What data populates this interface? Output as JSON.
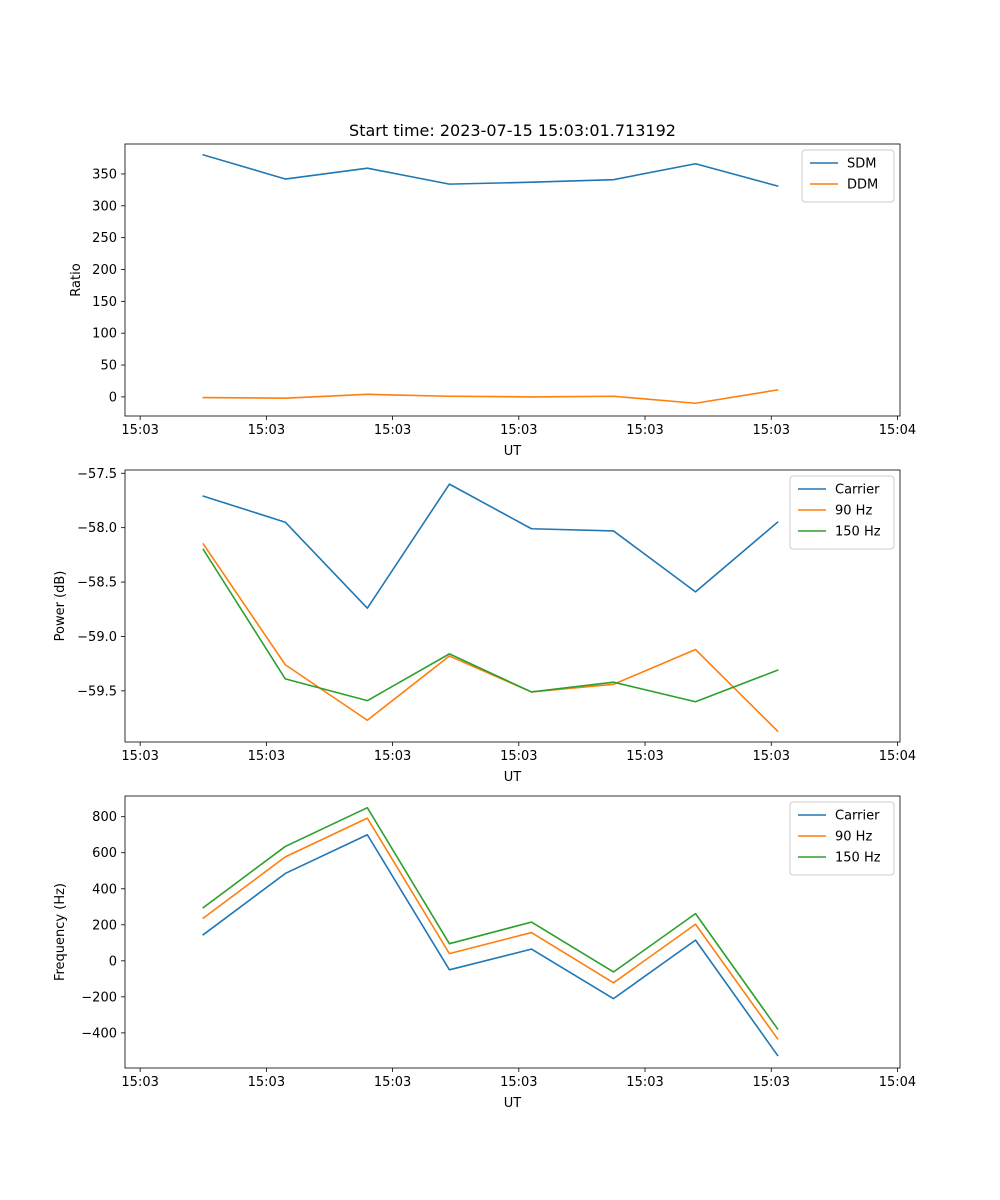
{
  "figure_title": "Start time: 2023-07-15 15:03:01.713192",
  "colors": {
    "blue": "#1f77b4",
    "orange": "#ff7f0e",
    "green": "#2ca02c"
  },
  "chart_data": [
    {
      "type": "line",
      "title": "Start time: 2023-07-15 15:03:01.713192",
      "xlabel": "UT",
      "ylabel": "Ratio",
      "x_tick_labels": [
        "15:03",
        "15:03",
        "15:03",
        "15:03",
        "15:03",
        "15:03",
        "15:04"
      ],
      "x_tick_positions": [
        0,
        1,
        2,
        3,
        4,
        5,
        6
      ],
      "xlim": [
        -0.12,
        6.02
      ],
      "x": [
        0.5,
        1.15,
        1.8,
        2.45,
        3.1,
        3.75,
        4.4,
        5.05
      ],
      "ylim": [
        -30,
        397
      ],
      "y_ticks": [
        0,
        50,
        100,
        150,
        200,
        250,
        300,
        350
      ],
      "y_tick_labels": [
        "0",
        "50",
        "100",
        "150",
        "200",
        "250",
        "300",
        "350"
      ],
      "legend_position": "top-right",
      "series": [
        {
          "name": "SDM",
          "color": "#1f77b4",
          "values": [
            380,
            342,
            359,
            334,
            337,
            341,
            366,
            331
          ]
        },
        {
          "name": "DDM",
          "color": "#ff7f0e",
          "values": [
            -1,
            -2,
            4,
            1,
            0,
            1,
            -10,
            11
          ]
        }
      ]
    },
    {
      "type": "line",
      "title": "",
      "xlabel": "UT",
      "ylabel": "Power (dB)",
      "x_tick_labels": [
        "15:03",
        "15:03",
        "15:03",
        "15:03",
        "15:03",
        "15:03",
        "15:04"
      ],
      "x_tick_positions": [
        0,
        1,
        2,
        3,
        4,
        5,
        6
      ],
      "xlim": [
        -0.12,
        6.02
      ],
      "x": [
        0.5,
        1.15,
        1.8,
        2.45,
        3.1,
        3.75,
        4.4,
        5.05
      ],
      "ylim": [
        -59.97,
        -57.47
      ],
      "y_ticks": [
        -59.5,
        -59.0,
        -58.5,
        -58.0,
        -57.5
      ],
      "y_tick_labels": [
        "−59.5",
        "−59.0",
        "−58.5",
        "−58.0",
        "−57.5"
      ],
      "legend_position": "top-right",
      "series": [
        {
          "name": "Carrier",
          "color": "#1f77b4",
          "values": [
            -57.71,
            -57.95,
            -58.74,
            -57.6,
            -58.01,
            -58.03,
            -58.59,
            -57.95
          ]
        },
        {
          "name": "90 Hz",
          "color": "#ff7f0e",
          "values": [
            -58.15,
            -59.26,
            -59.77,
            -59.18,
            -59.51,
            -59.44,
            -59.12,
            -59.87
          ]
        },
        {
          "name": "150 Hz",
          "color": "#2ca02c",
          "values": [
            -58.2,
            -59.39,
            -59.59,
            -59.16,
            -59.51,
            -59.42,
            -59.6,
            -59.31
          ]
        }
      ]
    },
    {
      "type": "line",
      "title": "",
      "xlabel": "UT",
      "ylabel": "Frequency (Hz)",
      "x_tick_labels": [
        "15:03",
        "15:03",
        "15:03",
        "15:03",
        "15:03",
        "15:03",
        "15:04"
      ],
      "x_tick_positions": [
        0,
        1,
        2,
        3,
        4,
        5,
        6
      ],
      "xlim": [
        -0.12,
        6.02
      ],
      "x": [
        0.5,
        1.15,
        1.8,
        2.45,
        3.1,
        3.75,
        4.4,
        5.05
      ],
      "ylim": [
        -595,
        915
      ],
      "y_ticks": [
        -400,
        -200,
        0,
        200,
        400,
        600,
        800
      ],
      "y_tick_labels": [
        "−400",
        "−200",
        "0",
        "200",
        "400",
        "600",
        "800"
      ],
      "legend_position": "top-right",
      "series": [
        {
          "name": "Carrier",
          "color": "#1f77b4",
          "values": [
            145,
            485,
            700,
            -50,
            65,
            -210,
            115,
            -525
          ]
        },
        {
          "name": "90 Hz",
          "color": "#ff7f0e",
          "values": [
            237,
            577,
            792,
            40,
            157,
            -122,
            203,
            -433
          ]
        },
        {
          "name": "150 Hz",
          "color": "#2ca02c",
          "values": [
            295,
            635,
            850,
            95,
            215,
            -62,
            262,
            -378
          ]
        }
      ]
    }
  ]
}
